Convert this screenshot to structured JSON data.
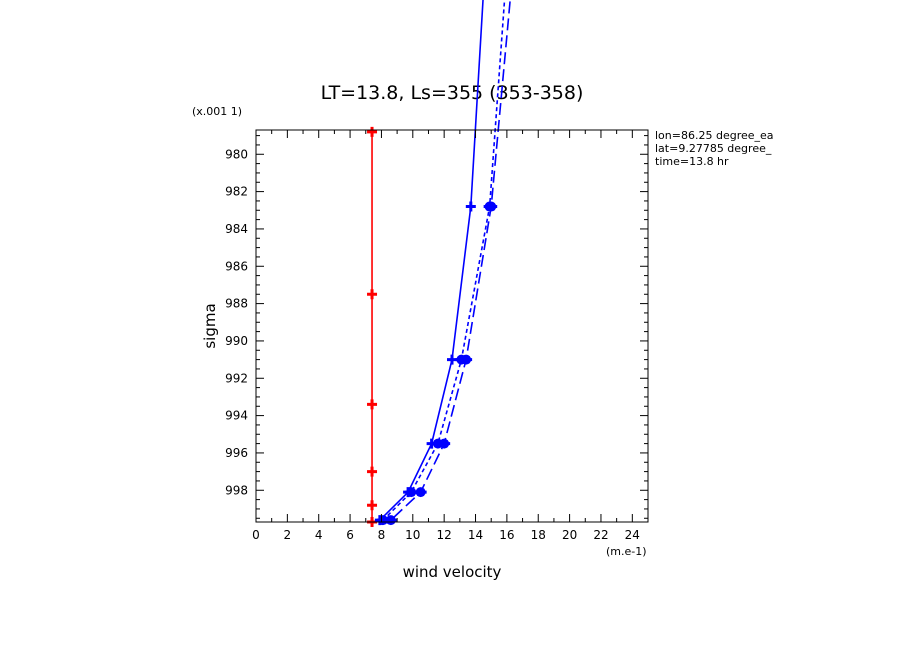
{
  "chart_data": {
    "type": "line",
    "title": "LT=13.8, Ls=355 (353-358)",
    "xlabel": "wind velocity",
    "ylabel": "sigma",
    "x_unit": "(m.e-1)",
    "y_unit": "(x.001 1)",
    "xlim": [
      0,
      25
    ],
    "ylim": [
      999.7,
      978.7
    ],
    "x_ticks": [
      0,
      2,
      4,
      6,
      8,
      10,
      12,
      14,
      16,
      18,
      20,
      22,
      24
    ],
    "y_ticks": [
      980,
      982,
      984,
      986,
      988,
      990,
      992,
      994,
      996,
      998
    ],
    "info": [
      "lon=86.25 degree_ea",
      "lat=9.27785 degree_",
      "time=13.8 hr"
    ],
    "series": [
      {
        "color": "#ff0000",
        "line_style": "solid",
        "marker": "plus",
        "points": [
          {
            "x": 7.4,
            "y": 978.8
          },
          {
            "x": 7.4,
            "y": 987.5
          },
          {
            "x": 7.4,
            "y": 993.4
          },
          {
            "x": 7.4,
            "y": 997.0
          },
          {
            "x": 7.4,
            "y": 998.8
          },
          {
            "x": 7.4,
            "y": 999.7
          }
        ]
      },
      {
        "color": "#0000ff",
        "line_style": "solid",
        "marker": "plus",
        "points": [
          {
            "x": 14.6,
            "y": 970.0
          },
          {
            "x": 13.7,
            "y": 982.8
          },
          {
            "x": 12.5,
            "y": 991.0
          },
          {
            "x": 11.2,
            "y": 995.5
          },
          {
            "x": 9.7,
            "y": 998.1
          },
          {
            "x": 7.9,
            "y": 999.6
          }
        ]
      },
      {
        "color": "#0000ff",
        "line_style": "short-dash",
        "marker": "circle",
        "points": [
          {
            "x": 16.0,
            "y": 970.0
          },
          {
            "x": 14.9,
            "y": 982.8
          },
          {
            "x": 13.1,
            "y": 991.0
          },
          {
            "x": 11.6,
            "y": 995.5
          },
          {
            "x": 9.9,
            "y": 998.1
          },
          {
            "x": 8.1,
            "y": 999.6
          }
        ]
      },
      {
        "color": "#0000ff",
        "line_style": "long-dash",
        "marker": "circle",
        "points": [
          {
            "x": 16.4,
            "y": 970.0
          },
          {
            "x": 15.0,
            "y": 982.8
          },
          {
            "x": 13.4,
            "y": 991.0
          },
          {
            "x": 12.0,
            "y": 995.5
          },
          {
            "x": 10.5,
            "y": 998.1
          },
          {
            "x": 8.6,
            "y": 999.6
          }
        ]
      }
    ]
  }
}
